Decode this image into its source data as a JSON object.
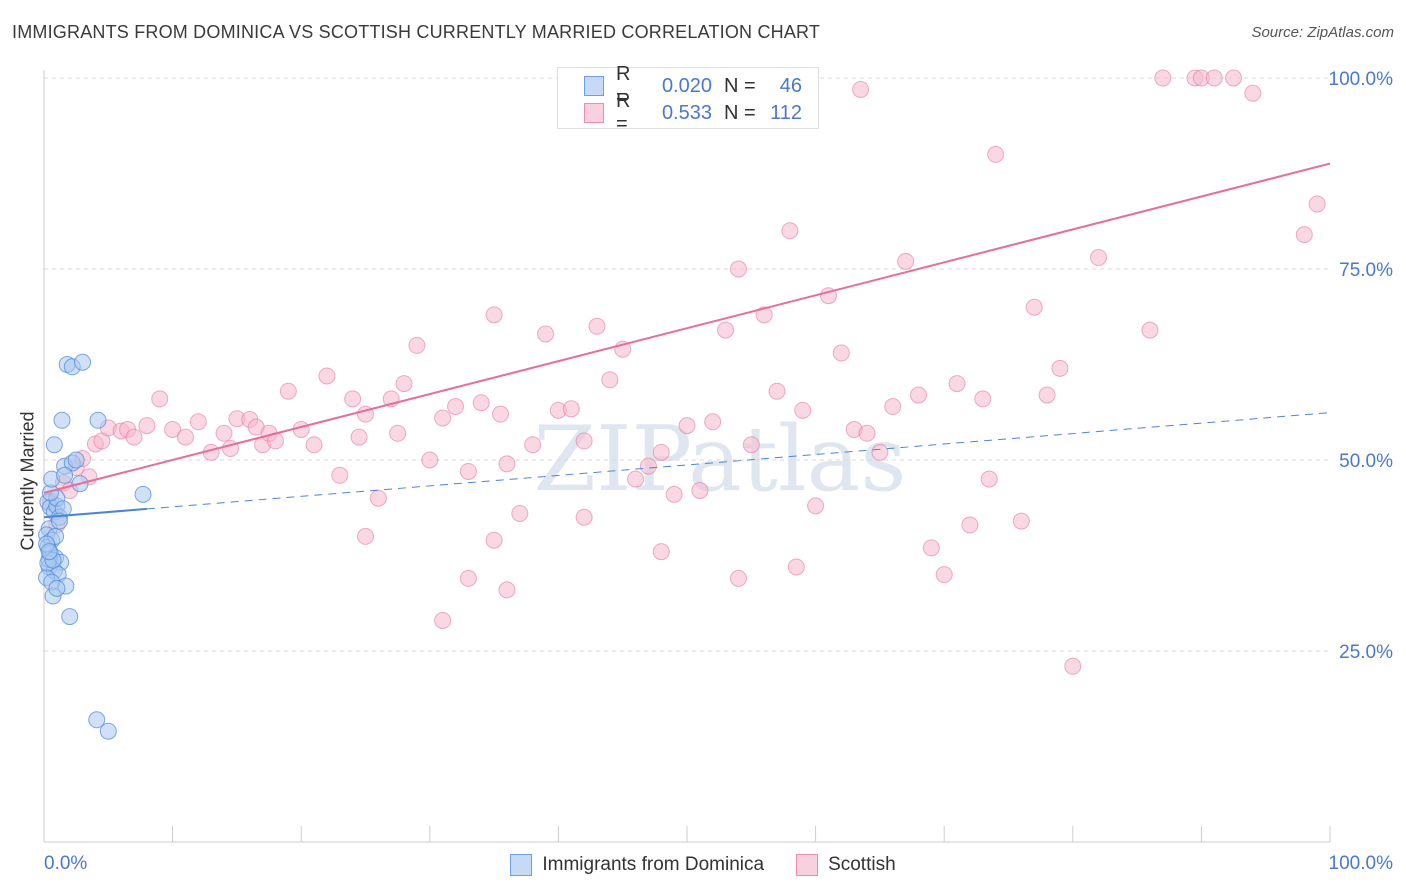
{
  "header": {
    "title": "IMMIGRANTS FROM DOMINICA VS SCOTTISH CURRENTLY MARRIED CORRELATION CHART",
    "source": "Source: ZipAtlas.com"
  },
  "watermark": "ZIPatlas",
  "legend": {
    "rows": [
      {
        "r_label": "R =",
        "r_value": "0.020",
        "n_label": "N =",
        "n_value": "46",
        "color": "#6aa0e8"
      },
      {
        "r_label": "R =",
        "r_value": "0.533",
        "n_label": "N =",
        "n_value": "112",
        "color": "#f08cb0"
      }
    ]
  },
  "chart_data": {
    "type": "scatter",
    "title": "IMMIGRANTS FROM DOMINICA VS SCOTTISH CURRENTLY MARRIED CORRELATION CHART",
    "xlabel": "",
    "ylabel": "Currently Married",
    "xlim": [
      0,
      100
    ],
    "ylim": [
      0,
      103
    ],
    "x_tick_labels": [
      "0.0%",
      "100.0%"
    ],
    "y_ticks": [
      25,
      50,
      75,
      100
    ],
    "y_tick_labels": [
      "25.0%",
      "50.0%",
      "75.0%",
      "100.0%"
    ],
    "grid": true,
    "series": [
      {
        "name": "Immigrants from Dominica",
        "color": "#4a86d8",
        "fill": "#a9c8f0",
        "trend": {
          "x": [
            0,
            8
          ],
          "y": [
            42.5,
            43.6
          ],
          "dashed_extension_to_x": 100,
          "dashed_y_end": 56.2
        },
        "points": [
          [
            0.3,
            44.5
          ],
          [
            0.5,
            43.8
          ],
          [
            0.8,
            43.2
          ],
          [
            1.0,
            44.0
          ],
          [
            1.2,
            42.5
          ],
          [
            0.4,
            41.0
          ],
          [
            0.2,
            40.2
          ],
          [
            0.6,
            39.5
          ],
          [
            0.3,
            38.6
          ],
          [
            0.5,
            37.8
          ],
          [
            0.9,
            37.2
          ],
          [
            1.3,
            36.6
          ],
          [
            0.4,
            36.0
          ],
          [
            0.8,
            35.5
          ],
          [
            1.1,
            35.0
          ],
          [
            0.2,
            34.6
          ],
          [
            0.6,
            34.0
          ],
          [
            1.7,
            33.5
          ],
          [
            0.7,
            32.2
          ],
          [
            2.0,
            29.5
          ],
          [
            0.8,
            52.0
          ],
          [
            1.4,
            55.2
          ],
          [
            4.2,
            55.2
          ],
          [
            1.6,
            49.2
          ],
          [
            2.2,
            49.6
          ],
          [
            2.5,
            50.0
          ],
          [
            2.8,
            46.9
          ],
          [
            1.0,
            45.0
          ],
          [
            7.7,
            45.5
          ],
          [
            1.8,
            62.5
          ],
          [
            2.2,
            62.2
          ],
          [
            3.0,
            62.8
          ],
          [
            0.4,
            37.0
          ],
          [
            0.9,
            40.0
          ],
          [
            1.5,
            43.6
          ],
          [
            0.5,
            45.7
          ],
          [
            1.2,
            42.0
          ],
          [
            0.3,
            36.5
          ],
          [
            0.7,
            36.9
          ],
          [
            0.2,
            39.0
          ],
          [
            4.1,
            16.0
          ],
          [
            5.0,
            14.5
          ],
          [
            1.0,
            33.2
          ],
          [
            0.6,
            47.5
          ],
          [
            1.6,
            48.0
          ],
          [
            0.4,
            38.0
          ]
        ]
      },
      {
        "name": "Scottish",
        "color": "#e86d9a",
        "fill": "#f5b8cc",
        "trend": {
          "x": [
            0,
            100
          ],
          "y": [
            45.7,
            88.8
          ]
        },
        "points": [
          [
            0.5,
            44.6
          ],
          [
            1.0,
            41.5
          ],
          [
            1.5,
            47.0
          ],
          [
            2.0,
            46.0
          ],
          [
            2.5,
            49.0
          ],
          [
            3.0,
            50.2
          ],
          [
            3.5,
            47.8
          ],
          [
            4.0,
            52.1
          ],
          [
            4.5,
            52.5
          ],
          [
            5.0,
            54.2
          ],
          [
            6.0,
            53.8
          ],
          [
            6.5,
            54.0
          ],
          [
            7.0,
            53.0
          ],
          [
            8.0,
            54.5
          ],
          [
            9.0,
            58.0
          ],
          [
            10.0,
            54.0
          ],
          [
            11.0,
            53.0
          ],
          [
            12.0,
            55.0
          ],
          [
            13.0,
            51.0
          ],
          [
            14.0,
            53.5
          ],
          [
            14.5,
            51.5
          ],
          [
            15.0,
            55.4
          ],
          [
            16.0,
            55.3
          ],
          [
            16.5,
            54.3
          ],
          [
            17.0,
            52.0
          ],
          [
            17.5,
            53.5
          ],
          [
            18.0,
            52.5
          ],
          [
            19.0,
            59.0
          ],
          [
            20.0,
            54.0
          ],
          [
            21.0,
            52.0
          ],
          [
            22.0,
            61.0
          ],
          [
            23.0,
            48.0
          ],
          [
            24.0,
            58.0
          ],
          [
            24.5,
            53.0
          ],
          [
            25.0,
            56.0
          ],
          [
            26.0,
            45.0
          ],
          [
            27.0,
            58.0
          ],
          [
            27.5,
            53.5
          ],
          [
            28.0,
            60.0
          ],
          [
            29.0,
            65.0
          ],
          [
            30.0,
            50.0
          ],
          [
            31.0,
            55.5
          ],
          [
            32.0,
            57.0
          ],
          [
            33.0,
            48.5
          ],
          [
            34.0,
            57.5
          ],
          [
            35.0,
            69.0
          ],
          [
            35.5,
            56.0
          ],
          [
            36.0,
            49.5
          ],
          [
            37.0,
            43.0
          ],
          [
            38.0,
            52.0
          ],
          [
            39.0,
            66.5
          ],
          [
            40.0,
            56.5
          ],
          [
            41.0,
            56.7
          ],
          [
            42.0,
            52.5
          ],
          [
            43.0,
            67.5
          ],
          [
            44.0,
            60.5
          ],
          [
            45.0,
            64.5
          ],
          [
            46.0,
            47.5
          ],
          [
            47.0,
            49.2
          ],
          [
            48.0,
            51.0
          ],
          [
            49.0,
            45.5
          ],
          [
            50.0,
            54.5
          ],
          [
            51.0,
            46.0
          ],
          [
            52.0,
            55.0
          ],
          [
            53.0,
            67.0
          ],
          [
            54.0,
            75.0
          ],
          [
            55.0,
            52.0
          ],
          [
            56.0,
            69.0
          ],
          [
            57.0,
            59.0
          ],
          [
            58.0,
            80.0
          ],
          [
            59.0,
            56.5
          ],
          [
            60.0,
            44.0
          ],
          [
            61.0,
            71.5
          ],
          [
            62.0,
            64.0
          ],
          [
            63.0,
            54.0
          ],
          [
            64.0,
            53.5
          ],
          [
            65.0,
            51.0
          ],
          [
            66.0,
            57.0
          ],
          [
            67.0,
            76.0
          ],
          [
            68.0,
            58.5
          ],
          [
            69.0,
            38.5
          ],
          [
            70.0,
            35.0
          ],
          [
            71.0,
            60.0
          ],
          [
            72.0,
            41.5
          ],
          [
            73.0,
            58.0
          ],
          [
            73.5,
            47.5
          ],
          [
            74.0,
            90.0
          ],
          [
            76.0,
            42.0
          ],
          [
            77.0,
            70.0
          ],
          [
            78.0,
            58.5
          ],
          [
            79.0,
            62.0
          ],
          [
            80.0,
            23.0
          ],
          [
            82.0,
            76.5
          ],
          [
            86.0,
            67.0
          ],
          [
            87.0,
            100.0
          ],
          [
            89.5,
            100.0
          ],
          [
            90.0,
            100.0
          ],
          [
            91.0,
            100.0
          ],
          [
            92.5,
            100.0
          ],
          [
            94.0,
            98.0
          ],
          [
            98.0,
            79.5
          ],
          [
            99.0,
            83.5
          ],
          [
            31.0,
            29.0
          ],
          [
            25.0,
            40.0
          ],
          [
            33.0,
            34.5
          ],
          [
            35.0,
            39.5
          ],
          [
            36.0,
            33.0
          ],
          [
            42.0,
            42.5
          ],
          [
            48.0,
            38.0
          ],
          [
            54.0,
            34.5
          ],
          [
            58.5,
            36.0
          ],
          [
            63.5,
            98.5
          ]
        ]
      }
    ]
  },
  "bottom_legend": {
    "items": [
      {
        "label": "Immigrants from Dominica"
      },
      {
        "label": "Scottish"
      }
    ]
  }
}
